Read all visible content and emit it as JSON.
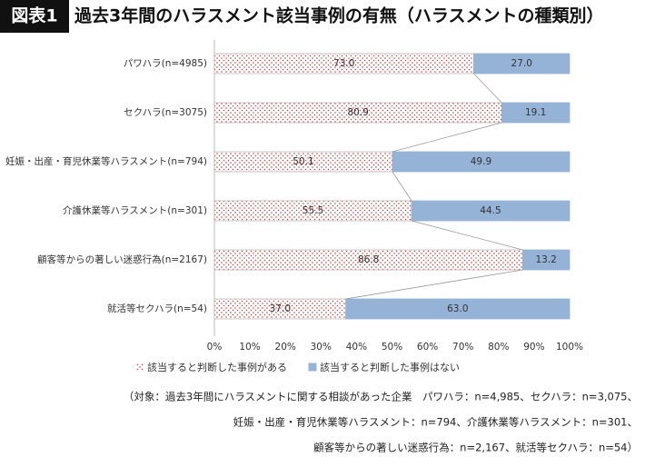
{
  "chart_data": {
    "type": "stacked-barh",
    "figure_label": "図表1",
    "title": "過去3年間のハラスメント該当事例の有無（ハラスメントの種類別）",
    "categories": [
      "パワハラ(n=4985)",
      "セクハラ(n=3075)",
      "妊娠・出産・育児休業等ハラスメント(n=794)",
      "介護休業等ハラスメント(n=301)",
      "顧客等からの著しい迷惑行為(n=2167)",
      "就活等セクハラ(n=54)"
    ],
    "series": [
      {
        "name": "該当すると判断した事例がある",
        "color": "#d23b3b",
        "values": [
          73.0,
          80.9,
          50.1,
          55.5,
          86.8,
          37.0
        ],
        "value_labels": [
          "73.0",
          "80.9",
          "50.1",
          "55.5",
          "86.8",
          "37.0"
        ]
      },
      {
        "name": "該当すると判断した事例はない",
        "color": "#95b3d7",
        "values": [
          27.0,
          19.1,
          49.9,
          44.5,
          13.2,
          63.0
        ],
        "value_labels": [
          "27.0",
          "19.1",
          "49.9",
          "44.5",
          "13.2",
          "63.0"
        ]
      }
    ],
    "xlim": [
      0,
      100
    ],
    "xticks": [
      {
        "value": 0,
        "label": "0%"
      },
      {
        "value": 10,
        "label": "10%"
      },
      {
        "value": 20,
        "label": "20%"
      },
      {
        "value": 30,
        "label": "30%"
      },
      {
        "value": 40,
        "label": "40%"
      },
      {
        "value": 50,
        "label": "50%"
      },
      {
        "value": 60,
        "label": "60%"
      },
      {
        "value": 70,
        "label": "70%"
      },
      {
        "value": 80,
        "label": "80%"
      },
      {
        "value": 90,
        "label": "90%"
      },
      {
        "value": 100,
        "label": "100%"
      }
    ],
    "footnote": [
      "（対象：過去3年間にハラスメントに関する相談があった企業　パワハラ：n=4,985、セクハラ：n=3,075、",
      "妊娠・出産・育児休業等ハラスメント：n=794、介護休業等ハラスメント：n=301、",
      "顧客等からの著しい迷惑行為：n=2,167、就活等セクハラ：n=54）"
    ]
  }
}
